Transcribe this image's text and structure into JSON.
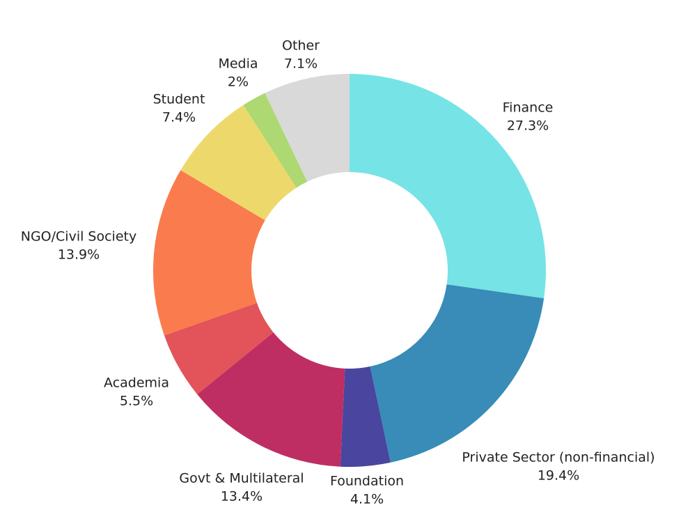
{
  "chart_data": {
    "type": "pie",
    "donut": true,
    "title": "",
    "legend": "none",
    "slices": [
      {
        "label": "Finance",
        "value": 27.3,
        "value_label": "27.3%",
        "color": "#76E3E6"
      },
      {
        "label": "Private Sector (non-financial)",
        "value": 19.4,
        "value_label": "19.4%",
        "color": "#388CB7"
      },
      {
        "label": "Foundation",
        "value": 4.1,
        "value_label": "4.1%",
        "color": "#4A459E"
      },
      {
        "label": "Govt & Multilateral",
        "value": 13.4,
        "value_label": "13.4%",
        "color": "#BF2E62"
      },
      {
        "label": "Academia",
        "value": 5.5,
        "value_label": "5.5%",
        "color": "#E25459"
      },
      {
        "label": "NGO/Civil Society",
        "value": 13.9,
        "value_label": "13.9%",
        "color": "#FA7B4D"
      },
      {
        "label": "Student",
        "value": 7.4,
        "value_label": "7.4%",
        "color": "#EDD96B"
      },
      {
        "label": "Media",
        "value": 2,
        "value_label": "2%",
        "color": "#ADD872"
      },
      {
        "label": "Other",
        "value": 7.1,
        "value_label": "7.1%",
        "color": "#D9D9D9"
      }
    ]
  }
}
